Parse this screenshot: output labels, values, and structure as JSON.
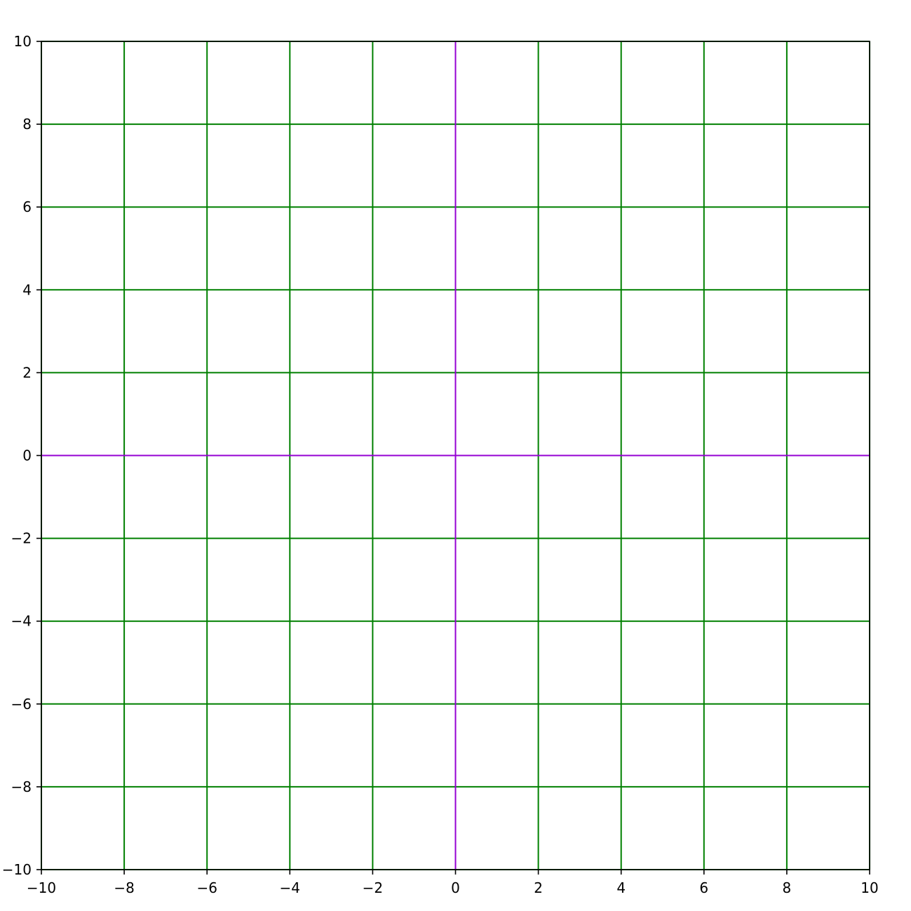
{
  "chart_data": {
    "type": "line",
    "title": "",
    "xlabel": "",
    "ylabel": "",
    "xlim": [
      -10,
      10
    ],
    "ylim": [
      -10,
      10
    ],
    "grid": true,
    "x_ticks": [
      -10,
      -8,
      -6,
      -4,
      -2,
      0,
      2,
      4,
      6,
      8,
      10
    ],
    "y_ticks": [
      -10,
      -8,
      -6,
      -4,
      -2,
      0,
      2,
      4,
      6,
      8,
      10
    ],
    "x_tick_labels": [
      "−10",
      "−8",
      "−6",
      "−4",
      "−2",
      "0",
      "2",
      "4",
      "6",
      "8",
      "10"
    ],
    "y_tick_labels": [
      "−10",
      "−8",
      "−6",
      "−4",
      "−2",
      "0",
      "2",
      "4",
      "6",
      "8",
      "10"
    ],
    "series": [
      {
        "x": [
          -10,
          10
        ],
        "y": [
          0,
          0
        ]
      },
      {
        "x": [
          0,
          0
        ],
        "y": [
          -10,
          10
        ]
      }
    ],
    "colors": {
      "grid": "#008000",
      "axis_lines": "#9400d3",
      "frame": "#000000"
    }
  }
}
